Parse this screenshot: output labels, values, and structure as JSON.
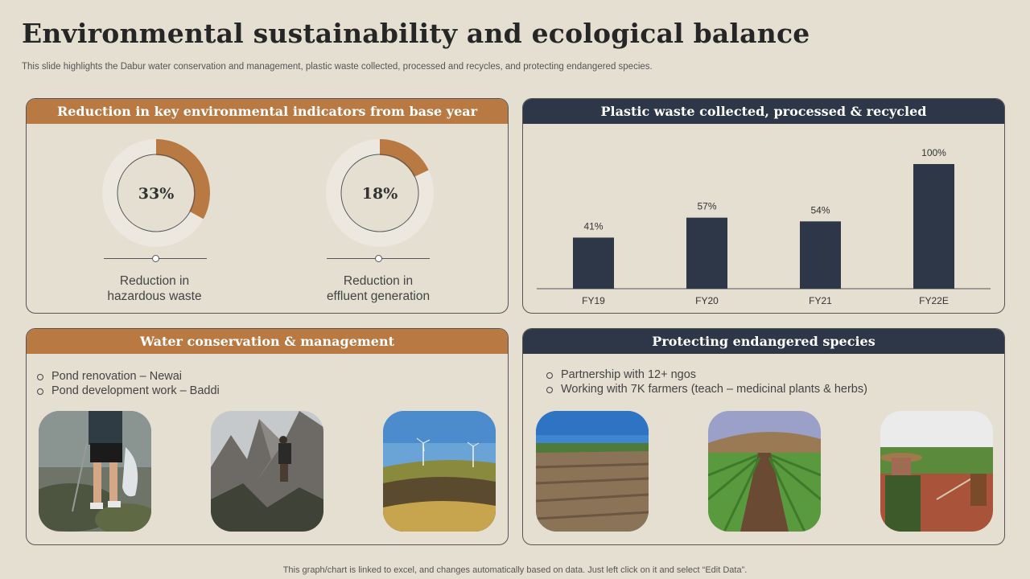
{
  "title": "Environmental sustainability and ecological balance",
  "subtitle": "This slide highlights the Dabur water conservation and management, plastic waste collected, processed and recycles, and protecting endangered species.",
  "footer": "This graph/chart is linked to excel,  and changes automatically based on data. Just left click on it and select “Edit Data”.",
  "colors": {
    "accent_orange": "#b87a42",
    "navy": "#2d3748",
    "background": "#e5dfd2",
    "ring": "#ece8df"
  },
  "indicators": {
    "header": "Reduction in key environmental indicators from base year",
    "items": [
      {
        "value": 33,
        "value_label": "33%",
        "label_line1": "Reduction in",
        "label_line2": "hazardous waste"
      },
      {
        "value": 18,
        "value_label": "18%",
        "label_line1": "Reduction in",
        "label_line2": "effluent  generation"
      }
    ]
  },
  "plastic": {
    "header": "Plastic waste collected, processed & recycled"
  },
  "chart_data": {
    "type": "bar",
    "categories": [
      "FY19",
      "FY20",
      "FY21",
      "FY22E"
    ],
    "values": [
      41,
      57,
      54,
      100
    ],
    "labels": [
      "41%",
      "57%",
      "54%",
      "100%"
    ],
    "ylim": [
      0,
      100
    ],
    "bar_color": "#2d3748",
    "grid": false
  },
  "water": {
    "header": "Water conservation & management",
    "bullets": [
      "Pond renovation – Newai",
      "Pond development work – Baddi"
    ],
    "photos": [
      "person-collecting-litter-photo",
      "hiker-on-rocky-mountain-photo",
      "wind-turbines-landscape-photo"
    ]
  },
  "species": {
    "header": "Protecting endangered species",
    "bullets": [
      "Partnership with 12+ ngos",
      "Working with 7K farmers (teach – medicinal plants & herbs)"
    ],
    "photos": [
      "ploughed-field-photo",
      "crop-rows-field-photo",
      "farmer-in-field-photo"
    ]
  }
}
